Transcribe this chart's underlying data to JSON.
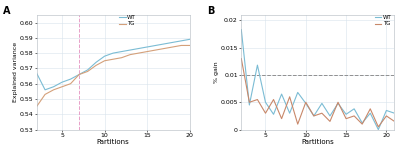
{
  "panel_A": {
    "title": "A",
    "ylabel": "Explained variance",
    "xlabel": "Partitions",
    "xlim": [
      2,
      20
    ],
    "ylim": [
      0.53,
      0.605
    ],
    "yticks": [
      0.53,
      0.54,
      0.55,
      0.56,
      0.57,
      0.58,
      0.59,
      0.6
    ],
    "xticks": [
      5,
      10,
      15,
      20
    ],
    "vline_x": 7,
    "vline_color": "#e8a0c8",
    "wt_color": "#7bbcd4",
    "tg_color": "#d4a07a",
    "wt_x": [
      2,
      3,
      4,
      5,
      6,
      7,
      8,
      9,
      10,
      11,
      12,
      13,
      14,
      15,
      16,
      17,
      18,
      19,
      20
    ],
    "wt_y": [
      0.567,
      0.556,
      0.558,
      0.561,
      0.563,
      0.566,
      0.569,
      0.574,
      0.578,
      0.58,
      0.581,
      0.582,
      0.583,
      0.584,
      0.585,
      0.586,
      0.587,
      0.588,
      0.589
    ],
    "tg_x": [
      2,
      3,
      4,
      5,
      6,
      7,
      8,
      9,
      10,
      11,
      12,
      13,
      14,
      15,
      16,
      17,
      18,
      19,
      20
    ],
    "tg_y": [
      0.545,
      0.553,
      0.556,
      0.558,
      0.56,
      0.566,
      0.568,
      0.572,
      0.575,
      0.576,
      0.577,
      0.579,
      0.58,
      0.581,
      0.582,
      0.583,
      0.584,
      0.585,
      0.585
    ],
    "grid_color": "#d8e4ec",
    "background": "#ffffff"
  },
  "panel_B": {
    "title": "B",
    "ylabel": "% gain",
    "xlabel": "Partitions",
    "xlim": [
      2,
      21
    ],
    "ylim": [
      0,
      0.021
    ],
    "yticks": [
      0,
      0.005,
      0.01,
      0.015,
      0.02
    ],
    "ytick_labels": [
      "0",
      "0.005",
      "0.01",
      "0.015",
      "0.02"
    ],
    "xticks": [
      5,
      10,
      15,
      20
    ],
    "hline_y": 0.01,
    "hline_color": "#909090",
    "wt_color": "#7bbcd4",
    "tg_color": "#c8886a",
    "wt_x": [
      2,
      3,
      4,
      5,
      6,
      7,
      8,
      9,
      10,
      11,
      12,
      13,
      14,
      15,
      16,
      17,
      18,
      19,
      20,
      21
    ],
    "wt_y": [
      0.0183,
      0.0045,
      0.0118,
      0.005,
      0.0028,
      0.0065,
      0.003,
      0.0068,
      0.0048,
      0.0025,
      0.0048,
      0.0025,
      0.0048,
      0.0028,
      0.0038,
      0.0012,
      0.003,
      0.0,
      0.0035,
      0.003
    ],
    "tg_x": [
      2,
      3,
      4,
      5,
      6,
      7,
      8,
      9,
      10,
      11,
      12,
      13,
      14,
      15,
      16,
      17,
      18,
      19,
      20,
      21
    ],
    "tg_y": [
      0.013,
      0.005,
      0.0055,
      0.003,
      0.0055,
      0.002,
      0.006,
      0.001,
      0.005,
      0.0025,
      0.003,
      0.0015,
      0.005,
      0.002,
      0.0025,
      0.001,
      0.0038,
      0.0005,
      0.0025,
      0.0015
    ],
    "grid_color": "#d8e4ec",
    "background": "#ffffff"
  },
  "fig_bg": "#ffffff"
}
